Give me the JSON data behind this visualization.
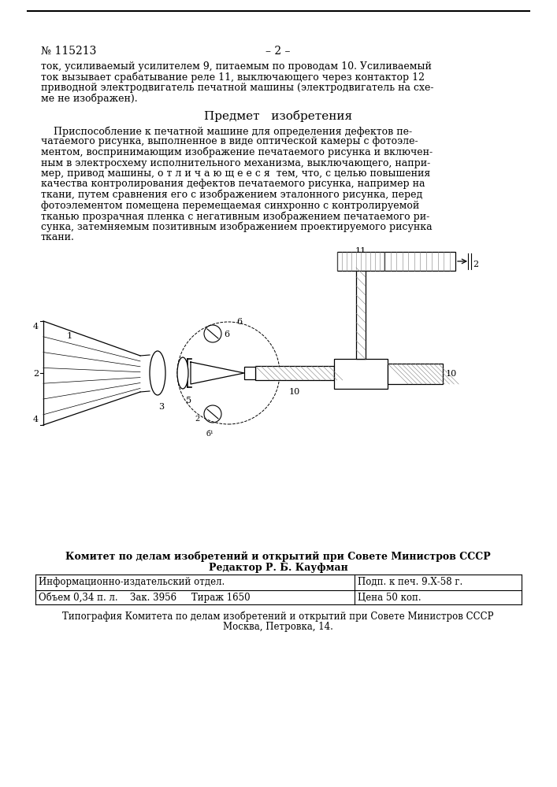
{
  "bg_color": "#ffffff",
  "patent_number": "№ 115213",
  "page_number": "– 2 –",
  "header_text_lines": [
    "ток, усиливаемый усилителем 9, питаемым по проводам 10. Усиливаемый",
    "ток вызывает срабатывание реле 11, выключающего через контактор 12",
    "приводной электродвигатель печатной машины (электродвигатель на схе-",
    "ме не изображен)."
  ],
  "section_title": "Предмет   изобретения",
  "body_text_lines": [
    "    Приспособление к печатной машине для определения дефектов пе-",
    "чатаемого рисунка, выполненное в виде оптической камеры с фотоэле-",
    "ментом, воспринимающим изображение печатаемого рисунка и включен-",
    "ным в электросхему исполнительного механизма, выключающего, напри-",
    "мер, привод машины, о т л и ч а ю щ е е с я  тем, что, с целью повышения",
    "качества контролирования дефектов печатаемого рисунка, например на",
    "ткани, путем сравнения его с изображением эталонного рисунка, перед",
    "фотоэлементом помещена перемещаемая синхронно с контролируемой",
    "тканью прозрачная пленка с негативным изображением печатаемого ри-",
    "сунка, затемняемым позитивным изображением проектируемого рисунка",
    "ткани."
  ],
  "footer_bold_line1": "Комитет по делам изобретений и открытий при Совете Министров СССР",
  "footer_bold_line2": "Редактор Р. Б. Кауфман",
  "footer_table": {
    "row1_left": "Информационно-издательский отдел.",
    "row1_right_top": "Подп. к печ. 9.Х-58 г.",
    "row2_left": "Объем 0,34 п. л.",
    "row2_middle": "Зак. 3956     Тираж 1650",
    "row2_right": "Цена 50 коп.",
    "row3": "Типография Комитета по делам изобретений и открытий при Совете Министров СССР",
    "row4": "Москва, Петровка, 14."
  }
}
